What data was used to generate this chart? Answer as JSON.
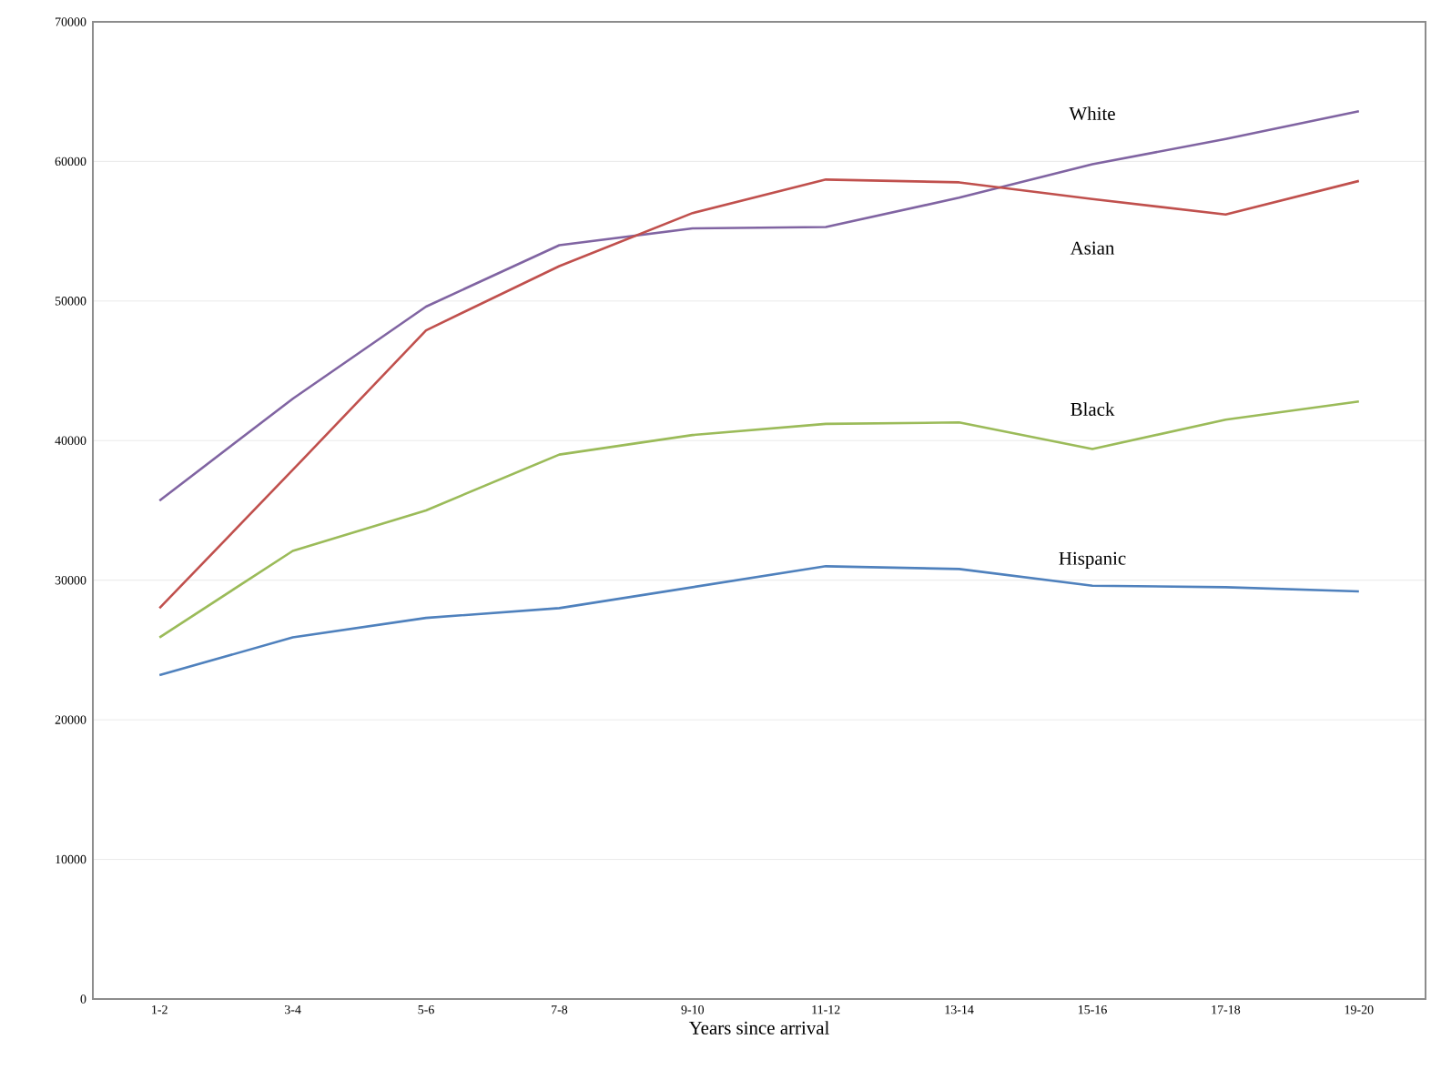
{
  "chart_data": {
    "type": "line",
    "xlabel": "Years since arrival",
    "categories": [
      "1-2",
      "3-4",
      "5-6",
      "7-8",
      "9-10",
      "11-12",
      "13-14",
      "15-16",
      "17-18",
      "19-20"
    ],
    "series": [
      {
        "name": "White",
        "color": "#8064a2",
        "values": [
          35700,
          43000,
          49600,
          54000,
          55200,
          55300,
          57400,
          59800,
          61600,
          63600
        ]
      },
      {
        "name": "Asian",
        "color": "#c0504d",
        "values": [
          28000,
          37900,
          47900,
          52500,
          56300,
          58700,
          58500,
          57300,
          56200,
          58600
        ]
      },
      {
        "name": "Black",
        "color": "#9bbb59",
        "values": [
          25900,
          32100,
          35000,
          39000,
          40400,
          41200,
          41300,
          39400,
          41500,
          42800
        ]
      },
      {
        "name": "Hispanic",
        "color": "#4f81bd",
        "values": [
          23200,
          25900,
          27300,
          28000,
          29500,
          31000,
          30800,
          29600,
          29500,
          29200
        ]
      }
    ],
    "ylim": [
      0,
      70000
    ],
    "yticks": [
      0,
      10000,
      20000,
      30000,
      40000,
      50000,
      60000,
      70000
    ],
    "grid": "y",
    "legend": false,
    "marker": "none",
    "line_style": "solid"
  }
}
